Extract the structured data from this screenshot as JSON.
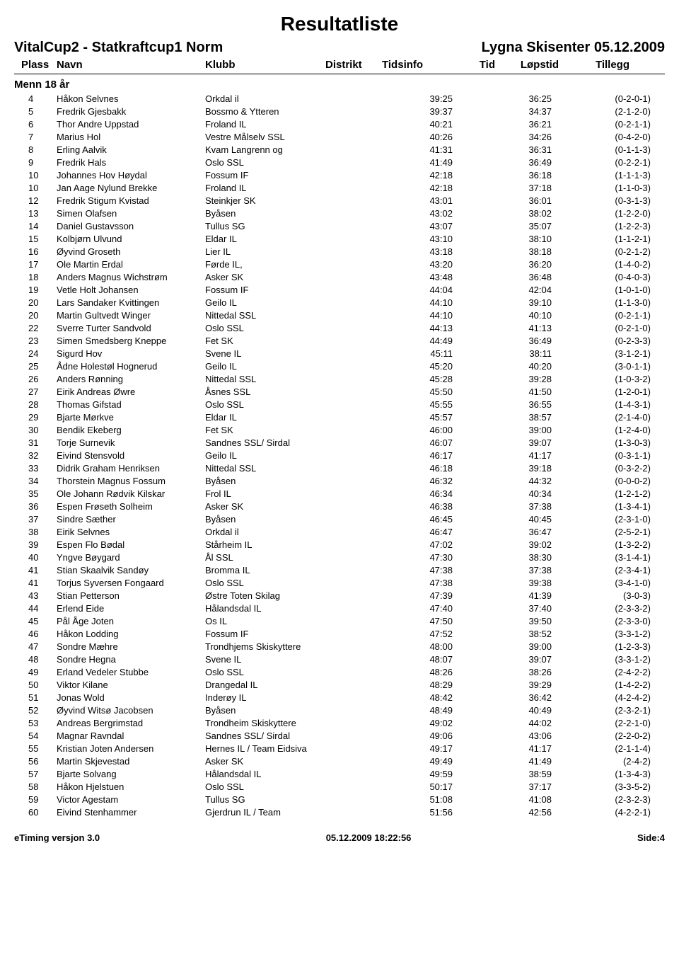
{
  "page": {
    "title": "Resultatliste",
    "event_left": "VitalCup2 - Statkraftcup1 Norm",
    "event_right": "Lygna Skisenter 05.12.2009",
    "headers": {
      "plass": "Plass",
      "navn": "Navn",
      "klubb": "Klubb",
      "distrikt": "Distrikt",
      "tidsinfo": "Tidsinfo",
      "tid": "Tid",
      "lopstid": "Løpstid",
      "tillegg": "Tillegg"
    },
    "category": "Menn 18 år",
    "footer": {
      "left": "eTiming versjon 3.0",
      "center": "05.12.2009 18:22:56",
      "right": "Side:4"
    },
    "style": {
      "title_fontsize": 28,
      "subhead_fontsize": 20,
      "header_fontsize": 15,
      "row_fontsize": 13,
      "text_color": "#000000",
      "bg_color": "#ffffff",
      "rule_color": "#000000"
    }
  },
  "rows": [
    {
      "p": "4",
      "navn": "Håkon Selvnes",
      "klubb": "Orkdal il",
      "tid": "39:25",
      "lop": "36:25",
      "til": "(0-2-0-1)"
    },
    {
      "p": "5",
      "navn": "Fredrik Gjesbakk",
      "klubb": "Bossmo &amp; Ytteren",
      "tid": "39:37",
      "lop": "34:37",
      "til": "(2-1-2-0)"
    },
    {
      "p": "6",
      "navn": "Thor Andre Uppstad",
      "klubb": "Froland IL",
      "tid": "40:21",
      "lop": "36:21",
      "til": "(0-2-1-1)"
    },
    {
      "p": "7",
      "navn": "Marius Hol",
      "klubb": "Vestre Målselv SSL",
      "tid": "40:26",
      "lop": "34:26",
      "til": "(0-4-2-0)"
    },
    {
      "p": "8",
      "navn": "Erling Aalvik",
      "klubb": "Kvam Langrenn og",
      "tid": "41:31",
      "lop": "36:31",
      "til": "(0-1-1-3)"
    },
    {
      "p": "9",
      "navn": "Fredrik Hals",
      "klubb": "Oslo SSL",
      "tid": "41:49",
      "lop": "36:49",
      "til": "(0-2-2-1)"
    },
    {
      "p": "10",
      "navn": "Johannes Hov Høydal",
      "klubb": "Fossum IF",
      "tid": "42:18",
      "lop": "36:18",
      "til": "(1-1-1-3)"
    },
    {
      "p": "10",
      "navn": "Jan Aage Nylund Brekke",
      "klubb": "Froland IL",
      "tid": "42:18",
      "lop": "37:18",
      "til": "(1-1-0-3)"
    },
    {
      "p": "12",
      "navn": "Fredrik Stigum Kvistad",
      "klubb": "Steinkjer SK",
      "tid": "43:01",
      "lop": "36:01",
      "til": "(0-3-1-3)"
    },
    {
      "p": "13",
      "navn": "Simen Olafsen",
      "klubb": "Byåsen",
      "tid": "43:02",
      "lop": "38:02",
      "til": "(1-2-2-0)"
    },
    {
      "p": "14",
      "navn": "Daniel Gustavsson",
      "klubb": "Tullus SG",
      "tid": "43:07",
      "lop": "35:07",
      "til": "(1-2-2-3)"
    },
    {
      "p": "15",
      "navn": "Kolbjørn Ulvund",
      "klubb": "Eldar IL",
      "tid": "43:10",
      "lop": "38:10",
      "til": "(1-1-2-1)"
    },
    {
      "p": "16",
      "navn": "Øyvind Groseth",
      "klubb": "Lier IL",
      "tid": "43:18",
      "lop": "38:18",
      "til": "(0-2-1-2)"
    },
    {
      "p": "17",
      "navn": "Ole Martin Erdal",
      "klubb": "Førde IL,",
      "tid": "43:20",
      "lop": "36:20",
      "til": "(1-4-0-2)"
    },
    {
      "p": "18",
      "navn": "Anders Magnus Wichstrøm",
      "klubb": "Asker SK",
      "tid": "43:48",
      "lop": "36:48",
      "til": "(0-4-0-3)"
    },
    {
      "p": "19",
      "navn": "Vetle Holt Johansen",
      "klubb": "Fossum IF",
      "tid": "44:04",
      "lop": "42:04",
      "til": "(1-0-1-0)"
    },
    {
      "p": "20",
      "navn": "Lars Sandaker Kvittingen",
      "klubb": "Geilo IL",
      "tid": "44:10",
      "lop": "39:10",
      "til": "(1-1-3-0)"
    },
    {
      "p": "20",
      "navn": "Martin Gultvedt Winger",
      "klubb": "Nittedal SSL",
      "tid": "44:10",
      "lop": "40:10",
      "til": "(0-2-1-1)"
    },
    {
      "p": "22",
      "navn": "Sverre Turter Sandvold",
      "klubb": "Oslo SSL",
      "tid": "44:13",
      "lop": "41:13",
      "til": "(0-2-1-0)"
    },
    {
      "p": "23",
      "navn": "Simen Smedsberg Kneppe",
      "klubb": "Fet SK",
      "tid": "44:49",
      "lop": "36:49",
      "til": "(0-2-3-3)"
    },
    {
      "p": "24",
      "navn": "Sigurd Hov",
      "klubb": "Svene IL",
      "tid": "45:11",
      "lop": "38:11",
      "til": "(3-1-2-1)"
    },
    {
      "p": "25",
      "navn": "Ådne Holestøl Hognerud",
      "klubb": "Geilo IL",
      "tid": "45:20",
      "lop": "40:20",
      "til": "(3-0-1-1)"
    },
    {
      "p": "26",
      "navn": "Anders Rønning",
      "klubb": "Nittedal SSL",
      "tid": "45:28",
      "lop": "39:28",
      "til": "(1-0-3-2)"
    },
    {
      "p": "27",
      "navn": "Eirik Andreas Øwre",
      "klubb": "Åsnes SSL",
      "tid": "45:50",
      "lop": "41:50",
      "til": "(1-2-0-1)"
    },
    {
      "p": "28",
      "navn": "Thomas Gifstad",
      "klubb": "Oslo SSL",
      "tid": "45:55",
      "lop": "36:55",
      "til": "(1-4-3-1)"
    },
    {
      "p": "29",
      "navn": "Bjarte Mørkve",
      "klubb": "Eldar IL",
      "tid": "45:57",
      "lop": "38:57",
      "til": "(2-1-4-0)"
    },
    {
      "p": "30",
      "navn": "Bendik Ekeberg",
      "klubb": "Fet SK",
      "tid": "46:00",
      "lop": "39:00",
      "til": "(1-2-4-0)"
    },
    {
      "p": "31",
      "navn": "Torje Surnevik",
      "klubb": "Sandnes SSL/ Sirdal",
      "tid": "46:07",
      "lop": "39:07",
      "til": "(1-3-0-3)"
    },
    {
      "p": "32",
      "navn": "Eivind Stensvold",
      "klubb": "Geilo IL",
      "tid": "46:17",
      "lop": "41:17",
      "til": "(0-3-1-1)"
    },
    {
      "p": "33",
      "navn": "Didrik Graham Henriksen",
      "klubb": "Nittedal SSL",
      "tid": "46:18",
      "lop": "39:18",
      "til": "(0-3-2-2)"
    },
    {
      "p": "34",
      "navn": "Thorstein Magnus Fossum",
      "klubb": "Byåsen",
      "tid": "46:32",
      "lop": "44:32",
      "til": "(0-0-0-2)"
    },
    {
      "p": "35",
      "navn": "Ole Johann Rødvik Kilskar",
      "klubb": "Frol IL",
      "tid": "46:34",
      "lop": "40:34",
      "til": "(1-2-1-2)"
    },
    {
      "p": "36",
      "navn": "Espen Frøseth Solheim",
      "klubb": "Asker SK",
      "tid": "46:38",
      "lop": "37:38",
      "til": "(1-3-4-1)"
    },
    {
      "p": "37",
      "navn": "Sindre Sæther",
      "klubb": "Byåsen",
      "tid": "46:45",
      "lop": "40:45",
      "til": "(2-3-1-0)"
    },
    {
      "p": "38",
      "navn": "Eirik Selvnes",
      "klubb": "Orkdal il",
      "tid": "46:47",
      "lop": "36:47",
      "til": "(2-5-2-1)"
    },
    {
      "p": "39",
      "navn": "Espen Flo Bødal",
      "klubb": "Stårheim IL",
      "tid": "47:02",
      "lop": "39:02",
      "til": "(1-3-2-2)"
    },
    {
      "p": "40",
      "navn": "Yngve Bøygard",
      "klubb": "Ål SSL",
      "tid": "47:30",
      "lop": "38:30",
      "til": "(3-1-4-1)"
    },
    {
      "p": "41",
      "navn": "Stian Skaalvik Sandøy",
      "klubb": "Bromma IL",
      "tid": "47:38",
      "lop": "37:38",
      "til": "(2-3-4-1)"
    },
    {
      "p": "41",
      "navn": "Torjus Syversen Fongaard",
      "klubb": "Oslo SSL",
      "tid": "47:38",
      "lop": "39:38",
      "til": "(3-4-1-0)"
    },
    {
      "p": "43",
      "navn": "Stian Petterson",
      "klubb": "Østre Toten Skilag",
      "tid": "47:39",
      "lop": "41:39",
      "til": "(3-0-3)"
    },
    {
      "p": "44",
      "navn": "Erlend Eide",
      "klubb": "Hålandsdal IL",
      "tid": "47:40",
      "lop": "37:40",
      "til": "(2-3-3-2)"
    },
    {
      "p": "45",
      "navn": "Pål Åge Joten",
      "klubb": "Os IL",
      "tid": "47:50",
      "lop": "39:50",
      "til": "(2-3-3-0)"
    },
    {
      "p": "46",
      "navn": "Håkon Lodding",
      "klubb": "Fossum IF",
      "tid": "47:52",
      "lop": "38:52",
      "til": "(3-3-1-2)"
    },
    {
      "p": "47",
      "navn": "Sondre Mæhre",
      "klubb": "Trondhjems Skiskyttere",
      "tid": "48:00",
      "lop": "39:00",
      "til": "(1-2-3-3)"
    },
    {
      "p": "48",
      "navn": "Sondre Hegna",
      "klubb": "Svene IL",
      "tid": "48:07",
      "lop": "39:07",
      "til": "(3-3-1-2)"
    },
    {
      "p": "49",
      "navn": "Erland Vedeler Stubbe",
      "klubb": "Oslo SSL",
      "tid": "48:26",
      "lop": "38:26",
      "til": "(2-4-2-2)"
    },
    {
      "p": "50",
      "navn": "Viktor Kilane",
      "klubb": "Drangedal IL",
      "tid": "48:29",
      "lop": "39:29",
      "til": "(1-4-2-2)"
    },
    {
      "p": "51",
      "navn": "Jonas Wold",
      "klubb": "Inderøy IL",
      "tid": "48:42",
      "lop": "36:42",
      "til": "(4-2-4-2)"
    },
    {
      "p": "52",
      "navn": "Øyvind Witsø Jacobsen",
      "klubb": "Byåsen",
      "tid": "48:49",
      "lop": "40:49",
      "til": "(2-3-2-1)"
    },
    {
      "p": "53",
      "navn": "Andreas Bergrimstad",
      "klubb": "Trondheim Skiskyttere",
      "tid": "49:02",
      "lop": "44:02",
      "til": "(2-2-1-0)"
    },
    {
      "p": "54",
      "navn": "Magnar Ravndal",
      "klubb": "Sandnes SSL/ Sirdal",
      "tid": "49:06",
      "lop": "43:06",
      "til": "(2-2-0-2)"
    },
    {
      "p": "55",
      "navn": "Kristian Joten Andersen",
      "klubb": "Hernes IL / Team Eidsiva",
      "tid": "49:17",
      "lop": "41:17",
      "til": "(2-1-1-4)"
    },
    {
      "p": "56",
      "navn": "Martin Skjevestad",
      "klubb": "Asker SK",
      "tid": "49:49",
      "lop": "41:49",
      "til": "(2-4-2)"
    },
    {
      "p": "57",
      "navn": "Bjarte Solvang",
      "klubb": "Hålandsdal IL",
      "tid": "49:59",
      "lop": "38:59",
      "til": "(1-3-4-3)"
    },
    {
      "p": "58",
      "navn": "Håkon Hjelstuen",
      "klubb": "Oslo SSL",
      "tid": "50:17",
      "lop": "37:17",
      "til": "(3-3-5-2)"
    },
    {
      "p": "59",
      "navn": "Victor Agestam",
      "klubb": "Tullus SG",
      "tid": "51:08",
      "lop": "41:08",
      "til": "(2-3-2-3)"
    },
    {
      "p": "60",
      "navn": "Eivind Stenhammer",
      "klubb": "Gjerdrun IL / Team",
      "tid": "51:56",
      "lop": "42:56",
      "til": "(4-2-2-1)"
    }
  ]
}
